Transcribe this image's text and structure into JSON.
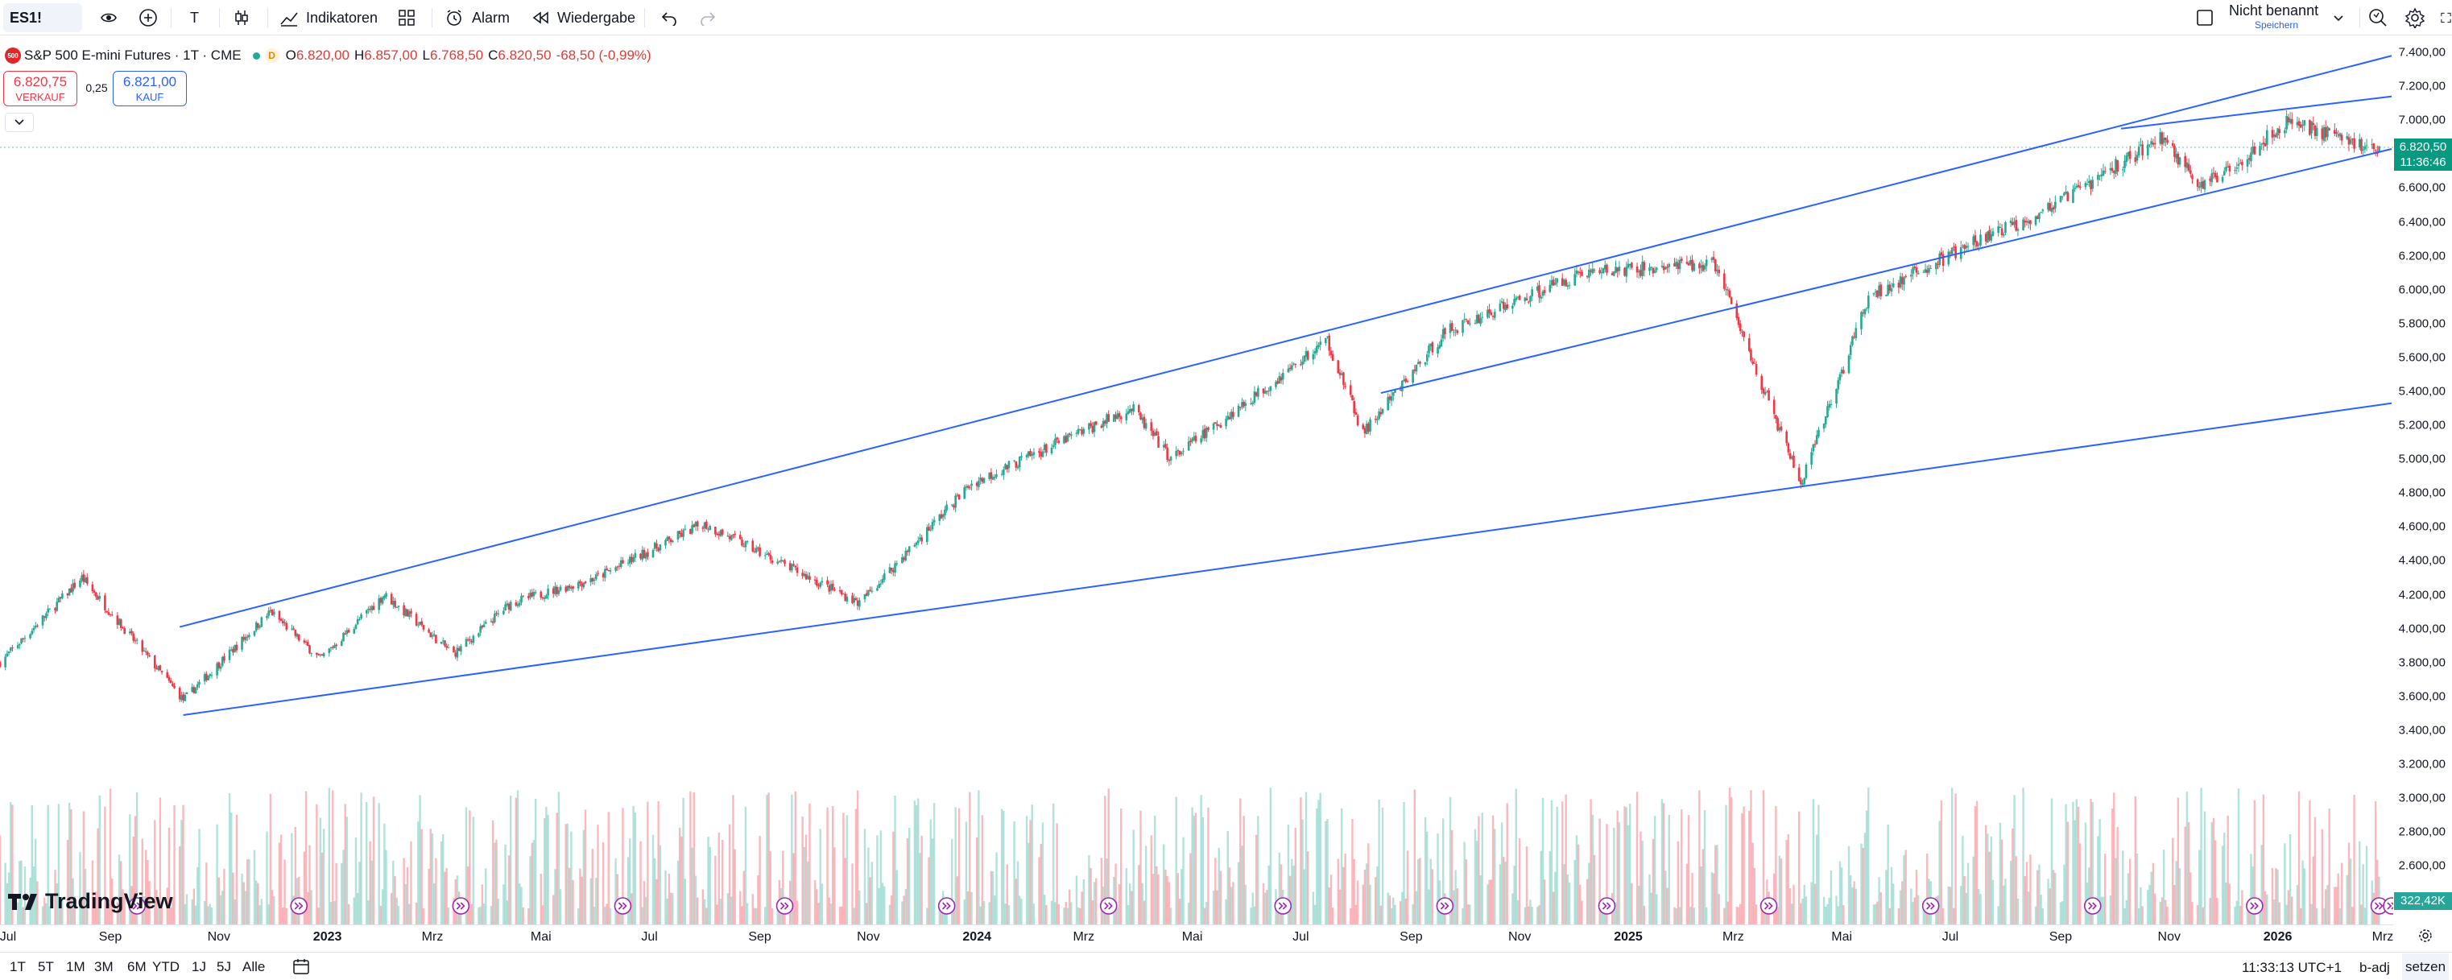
{
  "toolbar": {
    "symbol": "ES1!",
    "timeframe": "T",
    "indicators_label": "Indikatoren",
    "alarm_label": "Alarm",
    "replay_label": "Wiedergabe",
    "layout_name": "Nicht benannt",
    "save_label": "Speichern"
  },
  "legend": {
    "logo_text": "500",
    "title": "S&P 500 E-mini Futures · 1T · CME",
    "session_badge": "D",
    "open_key": "O",
    "open": "6.820,00",
    "high_key": "H",
    "high": "6.857,00",
    "low_key": "L",
    "low": "6.768,50",
    "close_key": "C",
    "close": "6.820,50",
    "change": "-68,50 (-0,99%)"
  },
  "trade": {
    "sell_price": "6.820,75",
    "sell_label": "VERKAUF",
    "spread": "0,25",
    "buy_price": "6.821,00",
    "buy_label": "KAUF"
  },
  "price_scale": {
    "ticks": [
      "7.400,00",
      "7.200,00",
      "7.000,00",
      "6.600,00",
      "6.400,00",
      "6.200,00",
      "6.000,00",
      "5.800,00",
      "5.600,00",
      "5.400,00",
      "5.200,00",
      "5.000,00",
      "4.800,00",
      "4.600,00",
      "4.400,00",
      "4.200,00",
      "4.000,00",
      "3.800,00",
      "3.600,00",
      "3.400,00",
      "3.200,00",
      "3.000,00",
      "2.800,00",
      "2.600,00"
    ],
    "last_price": "6.820,50",
    "countdown": "11:36:46",
    "volume": "322,42K"
  },
  "time_scale": {
    "ticks": [
      {
        "label": "Jul",
        "bold": false
      },
      {
        "label": "Sep",
        "bold": false
      },
      {
        "label": "Nov",
        "bold": false
      },
      {
        "label": "2023",
        "bold": true
      },
      {
        "label": "Mrz",
        "bold": false
      },
      {
        "label": "Mai",
        "bold": false
      },
      {
        "label": "Jul",
        "bold": false
      },
      {
        "label": "Sep",
        "bold": false
      },
      {
        "label": "Nov",
        "bold": false
      },
      {
        "label": "2024",
        "bold": true
      },
      {
        "label": "Mrz",
        "bold": false
      },
      {
        "label": "Mai",
        "bold": false
      },
      {
        "label": "Jul",
        "bold": false
      },
      {
        "label": "Sep",
        "bold": false
      },
      {
        "label": "Nov",
        "bold": false
      },
      {
        "label": "2025",
        "bold": true
      },
      {
        "label": "Mrz",
        "bold": false
      },
      {
        "label": "Mai",
        "bold": false
      },
      {
        "label": "Jul",
        "bold": false
      },
      {
        "label": "Sep",
        "bold": false
      },
      {
        "label": "Nov",
        "bold": false
      },
      {
        "label": "2026",
        "bold": true
      },
      {
        "label": "Mrz",
        "bold": false
      }
    ]
  },
  "bottombar": {
    "ranges": [
      "1T",
      "5T",
      "1M",
      "3M",
      "6M",
      "YTD",
      "1J",
      "5J",
      "Alle"
    ],
    "clock": "11:33:13 UTC+1",
    "badj": "b-adj",
    "setzen": "setzen"
  },
  "watermark": "TradingView",
  "colors": {
    "up": "#22ab94",
    "down": "#f23645",
    "trendline": "#2962ff",
    "accent": "#2962ff"
  },
  "chart_data": {
    "type": "candlestick",
    "symbol": "ES1!",
    "interval": "1T",
    "price_axis": [
      2500,
      7500
    ],
    "last_close": 6820.5,
    "close_path": [
      {
        "date": "2022-07-01",
        "close": 3800
      },
      {
        "date": "2022-08-16",
        "close": 4300
      },
      {
        "date": "2022-10-12",
        "close": 3580
      },
      {
        "date": "2022-11-30",
        "close": 4100
      },
      {
        "date": "2022-12-28",
        "close": 3820
      },
      {
        "date": "2023-02-02",
        "close": 4200
      },
      {
        "date": "2023-03-13",
        "close": 3850
      },
      {
        "date": "2023-04-14",
        "close": 4150
      },
      {
        "date": "2023-06-01",
        "close": 4300
      },
      {
        "date": "2023-07-31",
        "close": 4620
      },
      {
        "date": "2023-10-27",
        "close": 4150
      },
      {
        "date": "2023-12-28",
        "close": 4850
      },
      {
        "date": "2024-03-28",
        "close": 5300
      },
      {
        "date": "2024-04-19",
        "close": 5000
      },
      {
        "date": "2024-07-16",
        "close": 5700
      },
      {
        "date": "2024-08-05",
        "close": 5150
      },
      {
        "date": "2024-09-20",
        "close": 5750
      },
      {
        "date": "2024-12-06",
        "close": 6100
      },
      {
        "date": "2025-02-19",
        "close": 6150
      },
      {
        "date": "2025-03-13",
        "close": 5550
      },
      {
        "date": "2025-04-08",
        "close": 4850
      },
      {
        "date": "2025-05-16",
        "close": 5950
      },
      {
        "date": "2025-06-30",
        "close": 6200
      },
      {
        "date": "2025-08-29",
        "close": 6500
      },
      {
        "date": "2025-10-28",
        "close": 6900
      },
      {
        "date": "2025-11-20",
        "close": 6600
      },
      {
        "date": "2026-01-08",
        "close": 7000
      },
      {
        "date": "2026-02-27",
        "close": 6820
      }
    ],
    "trendlines": [
      {
        "start_date": "2022-10-10",
        "start_price": 4010,
        "end_date": "2026-03-06",
        "end_price": 7380
      },
      {
        "start_date": "2022-10-12",
        "start_price": 3490,
        "end_date": "2026-03-06",
        "end_price": 5330
      },
      {
        "start_date": "2024-08-15",
        "start_price": 5390,
        "end_date": "2026-03-06",
        "end_price": 6830
      },
      {
        "start_date": "2025-10-05",
        "start_price": 6950,
        "end_date": "2026-03-06",
        "end_price": 7140
      }
    ]
  }
}
